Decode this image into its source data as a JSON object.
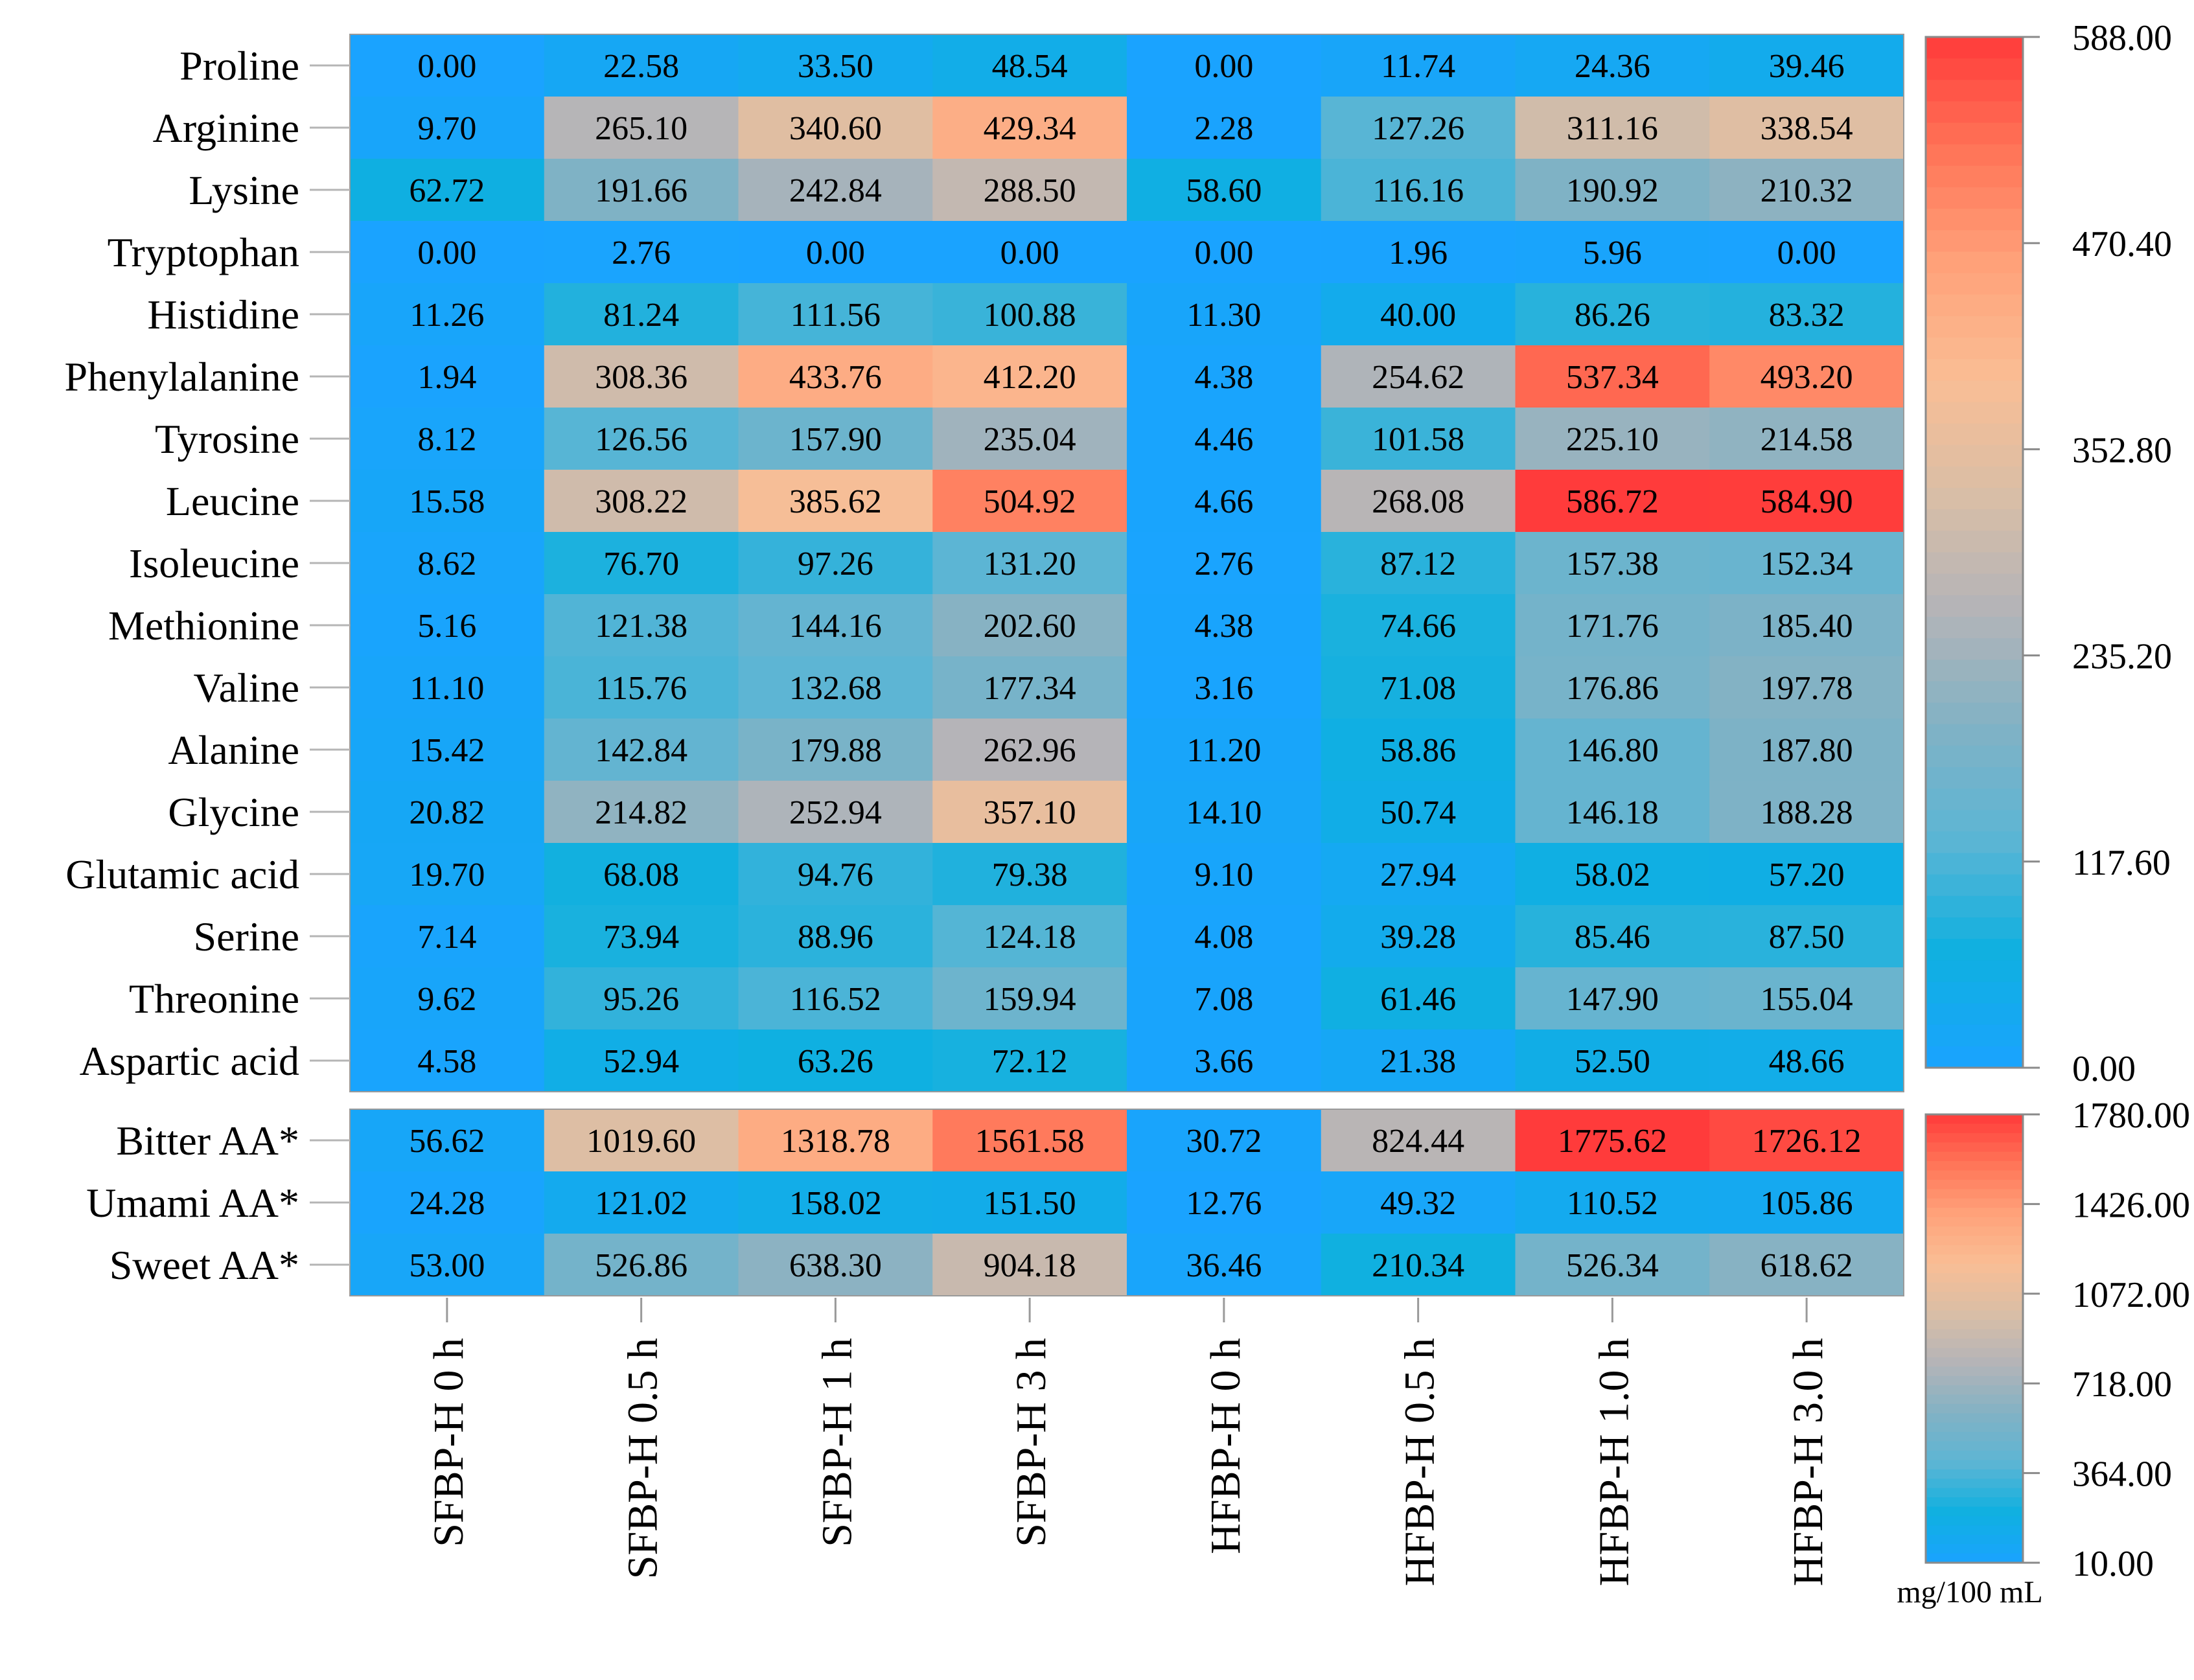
{
  "chart_data": {
    "type": "heatmap",
    "unit": "mg/100 mL",
    "columns": [
      "SFBP-H 0 h",
      "SFBP-H 0.5 h",
      "SFBP-H 1 h",
      "SFBP-H 3 h",
      "HFBP-H 0 h",
      "HFBP-H 0.5 h",
      "HFBP-H 1.0 h",
      "HFBP-H 3.0 h"
    ],
    "panels": [
      {
        "name": "amino-acids",
        "rows": [
          "Proline",
          "Arginine",
          "Lysine",
          "Tryptophan",
          "Histidine",
          "Phenylalanine",
          "Tyrosine",
          "Leucine",
          "Isoleucine",
          "Methionine",
          "Valine",
          "Alanine",
          "Glycine",
          "Glutamic acid",
          "Serine",
          "Threonine",
          "Aspartic acid"
        ],
        "values": [
          [
            "0.00",
            "22.58",
            "33.50",
            "48.54",
            "0.00",
            "11.74",
            "24.36",
            "39.46"
          ],
          [
            "9.70",
            "265.10",
            "340.60",
            "429.34",
            "2.28",
            "127.26",
            "311.16",
            "338.54"
          ],
          [
            "62.72",
            "191.66",
            "242.84",
            "288.50",
            "58.60",
            "116.16",
            "190.92",
            "210.32"
          ],
          [
            "0.00",
            "2.76",
            "0.00",
            "0.00",
            "0.00",
            "1.96",
            "5.96",
            "0.00"
          ],
          [
            "11.26",
            "81.24",
            "111.56",
            "100.88",
            "11.30",
            "40.00",
            "86.26",
            "83.32"
          ],
          [
            "1.94",
            "308.36",
            "433.76",
            "412.20",
            "4.38",
            "254.62",
            "537.34",
            "493.20"
          ],
          [
            "8.12",
            "126.56",
            "157.90",
            "235.04",
            "4.46",
            "101.58",
            "225.10",
            "214.58"
          ],
          [
            "15.58",
            "308.22",
            "385.62",
            "504.92",
            "4.66",
            "268.08",
            "586.72",
            "584.90"
          ],
          [
            "8.62",
            "76.70",
            "97.26",
            "131.20",
            "2.76",
            "87.12",
            "157.38",
            "152.34"
          ],
          [
            "5.16",
            "121.38",
            "144.16",
            "202.60",
            "4.38",
            "74.66",
            "171.76",
            "185.40"
          ],
          [
            "11.10",
            "115.76",
            "132.68",
            "177.34",
            "3.16",
            "71.08",
            "176.86",
            "197.78"
          ],
          [
            "15.42",
            "142.84",
            "179.88",
            "262.96",
            "11.20",
            "58.86",
            "146.80",
            "187.80"
          ],
          [
            "20.82",
            "214.82",
            "252.94",
            "357.10",
            "14.10",
            "50.74",
            "146.18",
            "188.28"
          ],
          [
            "19.70",
            "68.08",
            "94.76",
            "79.38",
            "9.10",
            "27.94",
            "58.02",
            "57.20"
          ],
          [
            "7.14",
            "73.94",
            "88.96",
            "124.18",
            "4.08",
            "39.28",
            "85.46",
            "87.50"
          ],
          [
            "9.62",
            "95.26",
            "116.52",
            "159.94",
            "7.08",
            "61.46",
            "147.90",
            "155.04"
          ],
          [
            "4.58",
            "52.94",
            "63.26",
            "72.12",
            "3.66",
            "21.38",
            "52.50",
            "48.66"
          ]
        ],
        "scale": {
          "min": 0,
          "max": 588,
          "ticks": [
            "588.00",
            "470.40",
            "352.80",
            "235.20",
            "117.60",
            "0.00"
          ]
        }
      },
      {
        "name": "taste-groups",
        "rows": [
          "Bitter AA*",
          "Umami AA*",
          "Sweet AA*"
        ],
        "values": [
          [
            "56.62",
            "1019.60",
            "1318.78",
            "1561.58",
            "30.72",
            "824.44",
            "1775.62",
            "1726.12"
          ],
          [
            "24.28",
            "121.02",
            "158.02",
            "151.50",
            "12.76",
            "49.32",
            "110.52",
            "105.86"
          ],
          [
            "53.00",
            "526.86",
            "638.30",
            "904.18",
            "36.46",
            "210.34",
            "526.34",
            "618.62"
          ]
        ],
        "scale": {
          "min": 10,
          "max": 1780,
          "ticks": [
            "1780.00",
            "1426.00",
            "1072.00",
            "718.00",
            "364.00",
            "10.00"
          ]
        }
      }
    ],
    "colormap": [
      "#1aa3ff",
      "#0fb0e0",
      "#5cb5d4",
      "#82b2c4",
      "#b4b4b8",
      "#d9bea6",
      "#f9be95",
      "#ffa27a",
      "#ff7558",
      "#ff3a3a"
    ]
  }
}
